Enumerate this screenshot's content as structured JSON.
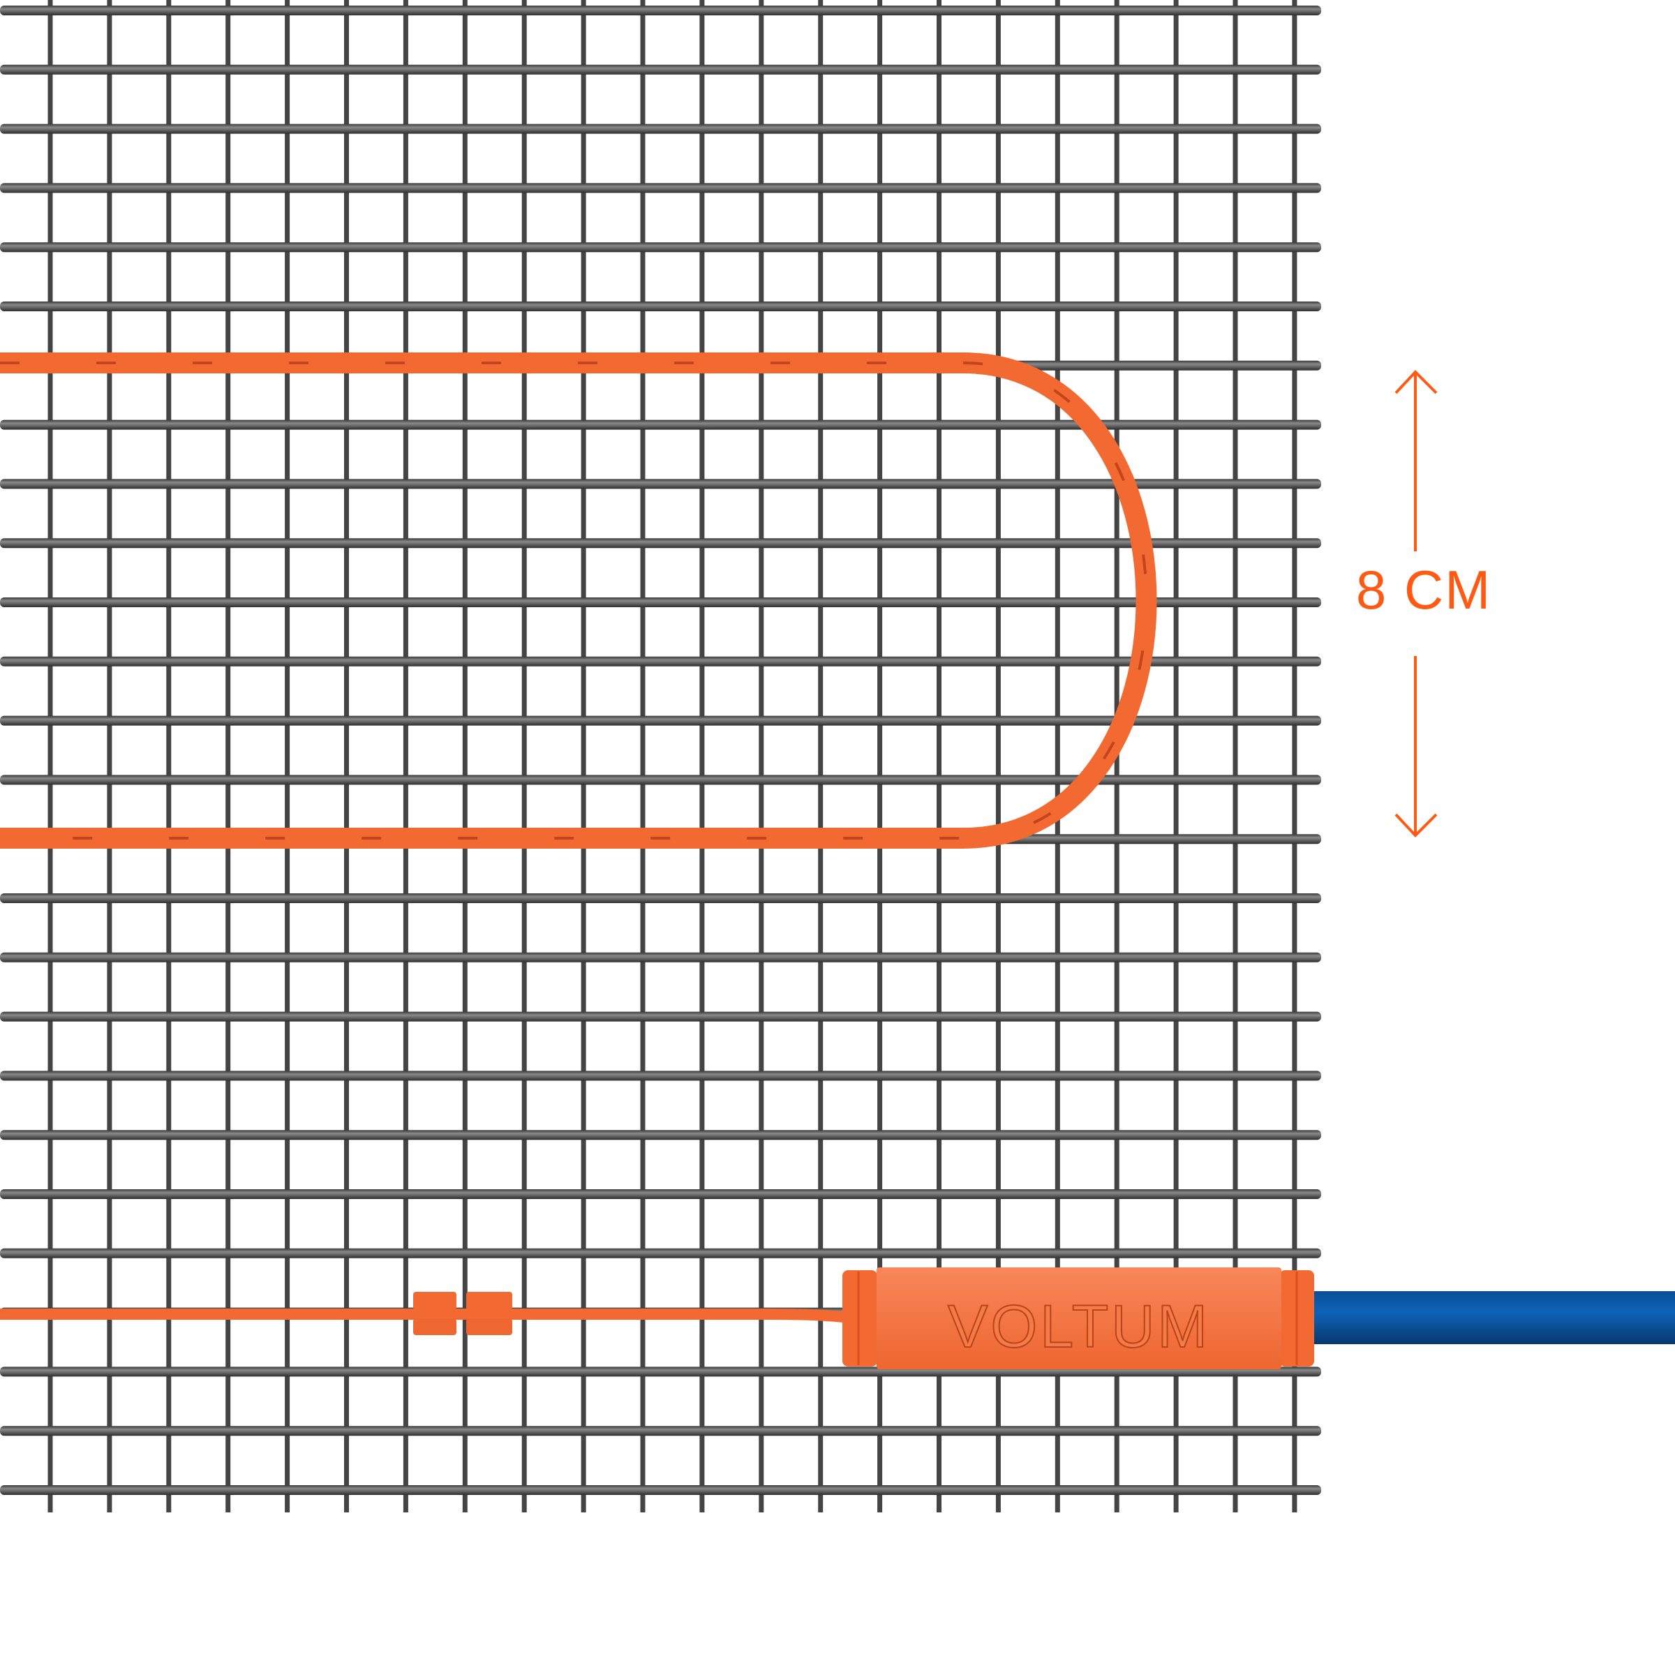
{
  "brand": {
    "logo_text": "VOLTUM"
  },
  "dimension": {
    "label": "8 CM"
  },
  "colors": {
    "mesh": "#4a4a4a",
    "cable": "#f26a32",
    "cable_wrap": "#c2451c",
    "coupling": "#f67a45",
    "cold_lead": "#0b5aa8",
    "annotation": "#ff5a14"
  },
  "icons": {
    "arrow_up": "arrow-up-icon",
    "arrow_down": "arrow-down-icon"
  }
}
